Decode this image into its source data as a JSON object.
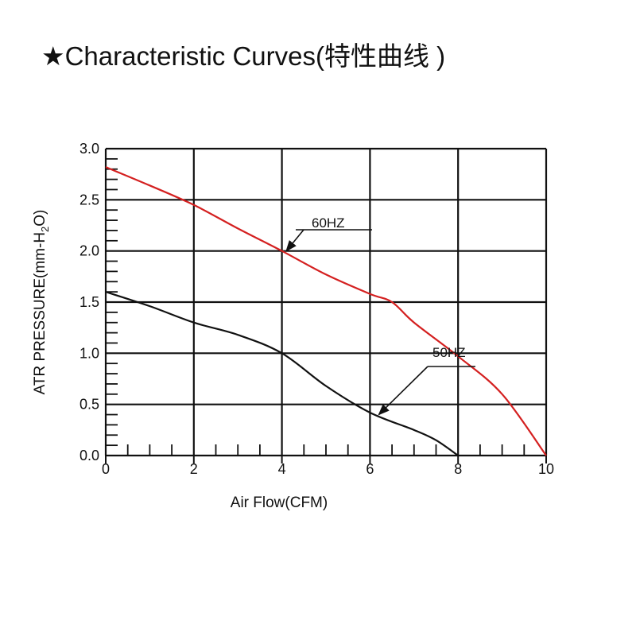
{
  "chart_data": {
    "type": "line",
    "title": "★Characteristic Curves(特性曲线 )",
    "xlabel": "Air Flow(CFM)",
    "ylabel": "ATR PRESSURE(mm-H2O)",
    "ylabel_parts": [
      "ATR PRESSURE(mm-H",
      "2",
      "O)"
    ],
    "xlim": [
      0,
      10
    ],
    "ylim": [
      0,
      3
    ],
    "x_ticks": [
      "0",
      "2",
      "4",
      "6",
      "8",
      "10"
    ],
    "y_ticks": [
      "0.0",
      "0.5",
      "1.0",
      "1.5",
      "2.0",
      "2.5",
      "3.0"
    ],
    "grid": true,
    "series": [
      {
        "name": "60HZ",
        "color": "#d42020",
        "x": [
          0,
          1,
          2,
          3,
          4,
          5,
          6,
          6.5,
          7,
          8,
          9,
          10
        ],
        "y": [
          2.82,
          2.64,
          2.45,
          2.22,
          2.0,
          1.77,
          1.58,
          1.5,
          1.3,
          0.97,
          0.6,
          0.0
        ]
      },
      {
        "name": "50HZ",
        "color": "#111111",
        "x": [
          0,
          1,
          2,
          3,
          4,
          5,
          6,
          7,
          7.5,
          8
        ],
        "y": [
          1.6,
          1.46,
          1.3,
          1.18,
          1.0,
          0.68,
          0.42,
          0.25,
          0.15,
          0.0
        ]
      }
    ],
    "annotations": [
      {
        "text": "60HZ",
        "target": [
          4.1,
          2.0
        ]
      },
      {
        "text": "50HZ",
        "target": [
          6.2,
          0.4
        ]
      }
    ]
  }
}
